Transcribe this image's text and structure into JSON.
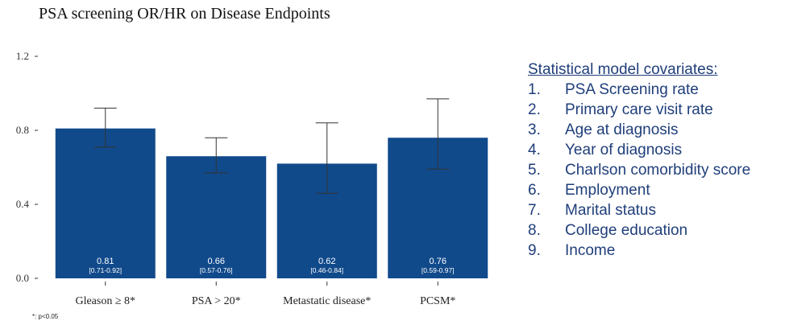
{
  "chart_data": {
    "type": "bar",
    "title": "PSA screening OR/HR on Disease Endpoints",
    "categories": [
      "Gleason ≥ 8*",
      "PSA > 20*",
      "Metastatic disease*",
      "PCSM*"
    ],
    "values": [
      0.81,
      0.66,
      0.62,
      0.76
    ],
    "value_labels": [
      "0.81",
      "0.66",
      "0.62",
      "0.76"
    ],
    "ci_lower": [
      0.71,
      0.57,
      0.46,
      0.59
    ],
    "ci_upper": [
      0.92,
      0.76,
      0.84,
      0.97
    ],
    "ci_labels": [
      "[0.71-0.92]",
      "[0.57-0.76]",
      "[0.46-0.84]",
      "[0.59-0.97]"
    ],
    "yticks": [
      0.0,
      0.4,
      0.8,
      1.2
    ],
    "ytick_labels": [
      "0.0",
      "0.4",
      "0.8",
      "1.2"
    ],
    "ylim": [
      0,
      1.2
    ],
    "xlabel": "",
    "ylabel": "",
    "grid": false,
    "bar_color": "#114a8b"
  },
  "footnote": "*: p<0.05",
  "covariates": {
    "title": "Statistical model covariates:",
    "items": [
      {
        "num": "1.",
        "label": "PSA Screening rate"
      },
      {
        "num": "2.",
        "label": "Primary care visit rate"
      },
      {
        "num": "3.",
        "label": "Age at diagnosis"
      },
      {
        "num": "4.",
        "label": "Year of diagnosis"
      },
      {
        "num": "5.",
        "label": "Charlson comorbidity score"
      },
      {
        "num": "6.",
        "label": "Employment"
      },
      {
        "num": "7.",
        "label": "Marital status"
      },
      {
        "num": "8.",
        "label": "College education"
      },
      {
        "num": "9.",
        "label": "Income"
      }
    ],
    "text_color": "#1f3e7a"
  }
}
